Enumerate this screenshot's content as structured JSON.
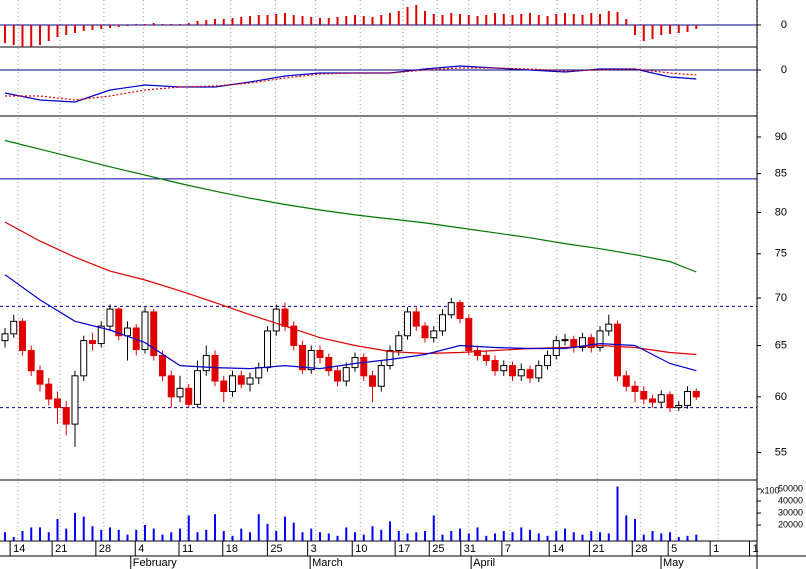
{
  "chart_data": [
    {
      "type": "bar",
      "color": "#e00000",
      "xlim": [
        -0.57,
        85.94
      ],
      "ylim": [
        -1.1,
        1.25
      ],
      "yticks": [
        0
      ],
      "zero_color": "#000080",
      "values": [
        -0.9,
        -1,
        -1.1,
        -1.1,
        -1.0,
        -0.8,
        -0.6,
        -0.5,
        -0.4,
        -0.3,
        -0.25,
        -0.2,
        -0.15,
        -0.1,
        -0.05,
        0.05,
        0.05,
        0.1,
        0.05,
        0.05,
        0.05,
        0.1,
        0.2,
        0.25,
        0.3,
        0.3,
        0.35,
        0.4,
        0.45,
        0.5,
        0.5,
        0.55,
        0.6,
        0.5,
        0.45,
        0.4,
        0.35,
        0.35,
        0.4,
        0.45,
        0.5,
        0.45,
        0.4,
        0.5,
        0.6,
        0.7,
        0.9,
        1.0,
        0.7,
        0.55,
        0.5,
        0.6,
        0.55,
        0.5,
        0.45,
        0.5,
        0.6,
        0.55,
        0.5,
        0.55,
        0.6,
        0.5,
        0.45,
        0.55,
        0.6,
        0.55,
        0.5,
        0.6,
        0.55,
        0.7,
        0.65,
        0.3,
        -0.5,
        -0.8,
        -0.7,
        -0.5,
        -0.45,
        -0.4,
        -0.35,
        -0.2
      ]
    },
    {
      "type": "line",
      "xlim": [
        -0.57,
        85.94
      ],
      "ylim": [
        -2.3,
        1.1
      ],
      "yticks": [
        0
      ],
      "zero_color": "#000080",
      "series": [
        {
          "color": "#0000cc",
          "dash": false,
          "x": [
            0,
            4,
            8,
            12,
            16,
            20,
            24,
            28,
            32,
            36,
            40,
            44,
            48,
            52,
            56,
            60,
            64,
            68,
            72,
            76,
            79
          ],
          "values": [
            -1.15,
            -1.5,
            -1.6,
            -1.0,
            -0.75,
            -0.85,
            -0.85,
            -0.6,
            -0.3,
            -0.15,
            -0.15,
            -0.15,
            0.05,
            0.2,
            0.1,
            0,
            -0.1,
            0.05,
            0.05,
            -0.35,
            -0.45
          ]
        },
        {
          "color": "#e00000",
          "dash": true,
          "x": [
            0,
            4,
            8,
            12,
            16,
            20,
            24,
            28,
            32,
            36,
            40,
            44,
            48,
            52,
            56,
            60,
            64,
            68,
            72,
            76,
            79
          ],
          "values": [
            -1.3,
            -1.3,
            -1.5,
            -1.3,
            -1.0,
            -0.85,
            -0.8,
            -0.65,
            -0.4,
            -0.2,
            -0.15,
            -0.15,
            0,
            0.1,
            0.1,
            0.05,
            -0.05,
            0,
            0.05,
            -0.15,
            -0.25
          ]
        }
      ]
    },
    {
      "type": "candlestick",
      "log": true,
      "xlim": [
        -0.57,
        85.94
      ],
      "ylim": [
        52.7,
        92.7
      ],
      "yticks": [
        55,
        60,
        65,
        70,
        75,
        80,
        85,
        90
      ],
      "up_color": "#ffffff",
      "down_color": "#e00000",
      "hlines": [
        84.3,
        69.1,
        59.0
      ],
      "hline_styles": [
        "solid",
        "dotted",
        "dotted"
      ],
      "hline_color": "#0000aa",
      "open": [
        65.5,
        66.2,
        67.5,
        64.5,
        62.5,
        61.2,
        59.8,
        59,
        57.5,
        62,
        65.5,
        65.2,
        67,
        68.8,
        66,
        66.8,
        64.6,
        68.5,
        64,
        62,
        60,
        60.8,
        59.3,
        62.5,
        64,
        61.5,
        60.5,
        62,
        61.2,
        61.8,
        62.8,
        66.5,
        68.8,
        67,
        65,
        62.6,
        64.5,
        63.8,
        62.5,
        61.5,
        62.8,
        63.8,
        62,
        61,
        63,
        64.5,
        66,
        68.5,
        67,
        65.8,
        66.5,
        68.2,
        69.5,
        67.8,
        64.5,
        64,
        63.5,
        62.5,
        63,
        62,
        62.6,
        61.8,
        63,
        64,
        65.5,
        65.6,
        64.8,
        65.8,
        64.8,
        66.5,
        67.2,
        62,
        61,
        60.5,
        59.8,
        59.5,
        60.2,
        59,
        59.2,
        60.5
      ],
      "high": [
        66.8,
        68.2,
        67.8,
        65,
        63,
        61.8,
        60.5,
        59.6,
        62.5,
        66,
        66.3,
        67.5,
        69.3,
        69,
        67.5,
        67.2,
        69,
        68.8,
        64.5,
        62.5,
        62,
        61.2,
        63.5,
        65,
        64.5,
        62,
        62.5,
        62.5,
        62.3,
        63.3,
        67,
        69.3,
        69.5,
        67.5,
        65.5,
        65,
        65,
        64.2,
        63,
        63.3,
        64.3,
        64.2,
        62.5,
        63.5,
        65,
        66.5,
        69,
        69,
        67.4,
        67,
        68.8,
        70,
        69.8,
        68.2,
        65,
        64.5,
        64,
        63.5,
        63.4,
        63.2,
        63,
        63.5,
        64.5,
        66,
        66.2,
        66,
        66.3,
        66.2,
        67,
        68.2,
        67.6,
        62.5,
        61.5,
        61,
        60.2,
        60.6,
        60.5,
        59.6,
        61,
        60.8
      ],
      "low": [
        64.8,
        65.8,
        64,
        62,
        60.5,
        59.2,
        57.5,
        56.5,
        55.5,
        61.5,
        64.5,
        64.8,
        66.5,
        65.5,
        63.5,
        64,
        64.2,
        63.5,
        61.5,
        59,
        59.5,
        59,
        59,
        62,
        61,
        59.5,
        60,
        60.8,
        60.5,
        61.2,
        62.4,
        66,
        66.5,
        64.5,
        62.2,
        62.2,
        63.2,
        62,
        61,
        61,
        62.4,
        61.5,
        59.5,
        60.5,
        62.6,
        64,
        65.6,
        66.5,
        65.3,
        65.3,
        66,
        67.8,
        67.3,
        64,
        63.5,
        63,
        62,
        62,
        61.5,
        61.5,
        61.3,
        61.4,
        62.6,
        63.6,
        65,
        64.3,
        64.4,
        64.3,
        64.4,
        66,
        61.5,
        60.5,
        59.5,
        59.3,
        59,
        59,
        58.6,
        58.7,
        58.9,
        59.7
      ],
      "close": [
        66.2,
        67.5,
        64.5,
        62.5,
        61.2,
        59.8,
        59,
        57.5,
        62,
        65.5,
        65.2,
        67,
        68.8,
        66,
        66.8,
        64.6,
        68.5,
        64,
        62,
        60,
        60.8,
        59.3,
        62.5,
        64,
        61.5,
        60.5,
        62,
        61.2,
        61.8,
        62.8,
        66.5,
        68.8,
        67,
        65,
        62.6,
        64.5,
        63.8,
        62.5,
        61.5,
        62.8,
        63.8,
        62,
        61,
        63,
        64.5,
        66,
        68.5,
        67,
        65.8,
        66.5,
        68.2,
        69.5,
        67.8,
        64.5,
        64,
        63.5,
        62.5,
        63,
        62,
        62.6,
        61.8,
        63,
        64,
        65.5,
        65.6,
        64.8,
        65.8,
        64.8,
        66.5,
        67.2,
        62,
        61,
        60.5,
        59.8,
        59.5,
        60.2,
        59,
        59.2,
        60.5,
        60
      ],
      "series": [
        {
          "color": "#007700",
          "x": [
            0,
            4,
            8,
            12,
            16,
            20,
            24,
            28,
            32,
            36,
            40,
            44,
            48,
            52,
            56,
            60,
            64,
            68,
            72,
            76,
            79
          ],
          "values": [
            89.5,
            88.3,
            87.1,
            85.9,
            84.8,
            83.7,
            82.7,
            81.8,
            81.0,
            80.3,
            79.7,
            79.2,
            78.7,
            78.1,
            77.5,
            76.9,
            76.2,
            75.6,
            74.9,
            74.1,
            72.9
          ]
        },
        {
          "color": "#dd0000",
          "x": [
            0,
            4,
            8,
            12,
            16,
            20,
            24,
            28,
            32,
            36,
            40,
            44,
            48,
            52,
            56,
            60,
            64,
            68,
            72,
            76,
            79
          ],
          "values": [
            78.8,
            76.5,
            74.6,
            73.0,
            72.0,
            70.8,
            69.5,
            68.2,
            67,
            65.8,
            65,
            64.4,
            64.2,
            64.3,
            64.5,
            64.7,
            64.8,
            65.0,
            64.8,
            64.3,
            64.1
          ]
        },
        {
          "color": "#0000cc",
          "x": [
            0,
            4,
            8,
            12,
            16,
            20,
            24,
            28,
            32,
            36,
            40,
            44,
            48,
            52,
            56,
            60,
            64,
            68,
            72,
            76,
            79
          ],
          "values": [
            72.6,
            69.8,
            67.5,
            66.6,
            65.3,
            63,
            62.8,
            62.7,
            63,
            62.7,
            63.2,
            63.6,
            64.1,
            65,
            64.8,
            64.7,
            64.7,
            65.2,
            65,
            63.2,
            62.5
          ]
        }
      ]
    },
    {
      "type": "bar",
      "color": "#0000ff",
      "xlim": [
        -0.57,
        85.94
      ],
      "ylim": [
        6700,
        55800
      ],
      "yticks": [
        20000,
        30000,
        40000,
        50000
      ],
      "unit_label": "x100",
      "values": [
        14000,
        10000,
        15000,
        18000,
        18000,
        14000,
        25000,
        17000,
        30000,
        27000,
        19000,
        16000,
        18000,
        16000,
        12000,
        16000,
        20000,
        17000,
        12000,
        14000,
        17000,
        28000,
        14000,
        16000,
        29000,
        15000,
        11000,
        17000,
        14000,
        29000,
        21000,
        15000,
        27000,
        22000,
        14000,
        17000,
        14000,
        13000,
        11000,
        18000,
        14000,
        12000,
        19000,
        16000,
        23000,
        15000,
        13000,
        14000,
        15000,
        28000,
        12000,
        15000,
        17000,
        13000,
        18000,
        11000,
        13000,
        15000,
        14000,
        18000,
        16000,
        13000,
        11000,
        15000,
        17000,
        14000,
        12000,
        15000,
        14000,
        13000,
        52000,
        28000,
        25000,
        12000,
        15000,
        13000,
        14000,
        10000,
        11000,
        12000
      ],
      "xticks": [
        {
          "value": 1.5,
          "label": "14"
        },
        {
          "value": 6.3,
          "label": "21"
        },
        {
          "value": 11.3,
          "label": "28"
        },
        {
          "value": 15.8,
          "label": "4"
        },
        {
          "value": 20.8,
          "label": "11"
        },
        {
          "value": 25.8,
          "label": "18"
        },
        {
          "value": 30.9,
          "label": "25"
        },
        {
          "value": 35.5,
          "label": "3"
        },
        {
          "value": 40.6,
          "label": "10"
        },
        {
          "value": 45.5,
          "label": "17"
        },
        {
          "value": 49.4,
          "label": "25"
        },
        {
          "value": 53.0,
          "label": "31"
        },
        {
          "value": 57.7,
          "label": "7"
        },
        {
          "value": 63.1,
          "label": "14"
        },
        {
          "value": 67.7,
          "label": "21"
        },
        {
          "value": 72.6,
          "label": "28"
        },
        {
          "value": 76.7,
          "label": "5"
        },
        {
          "value": 81.5,
          "label": "1"
        },
        {
          "value": 86.0,
          "label": "1"
        }
      ],
      "month_ticks": [
        {
          "value": 14.6,
          "label": "February"
        },
        {
          "value": 35.1,
          "label": "March"
        },
        {
          "value": 53.5,
          "label": "April"
        },
        {
          "value": 75.2,
          "label": "May"
        }
      ]
    }
  ]
}
